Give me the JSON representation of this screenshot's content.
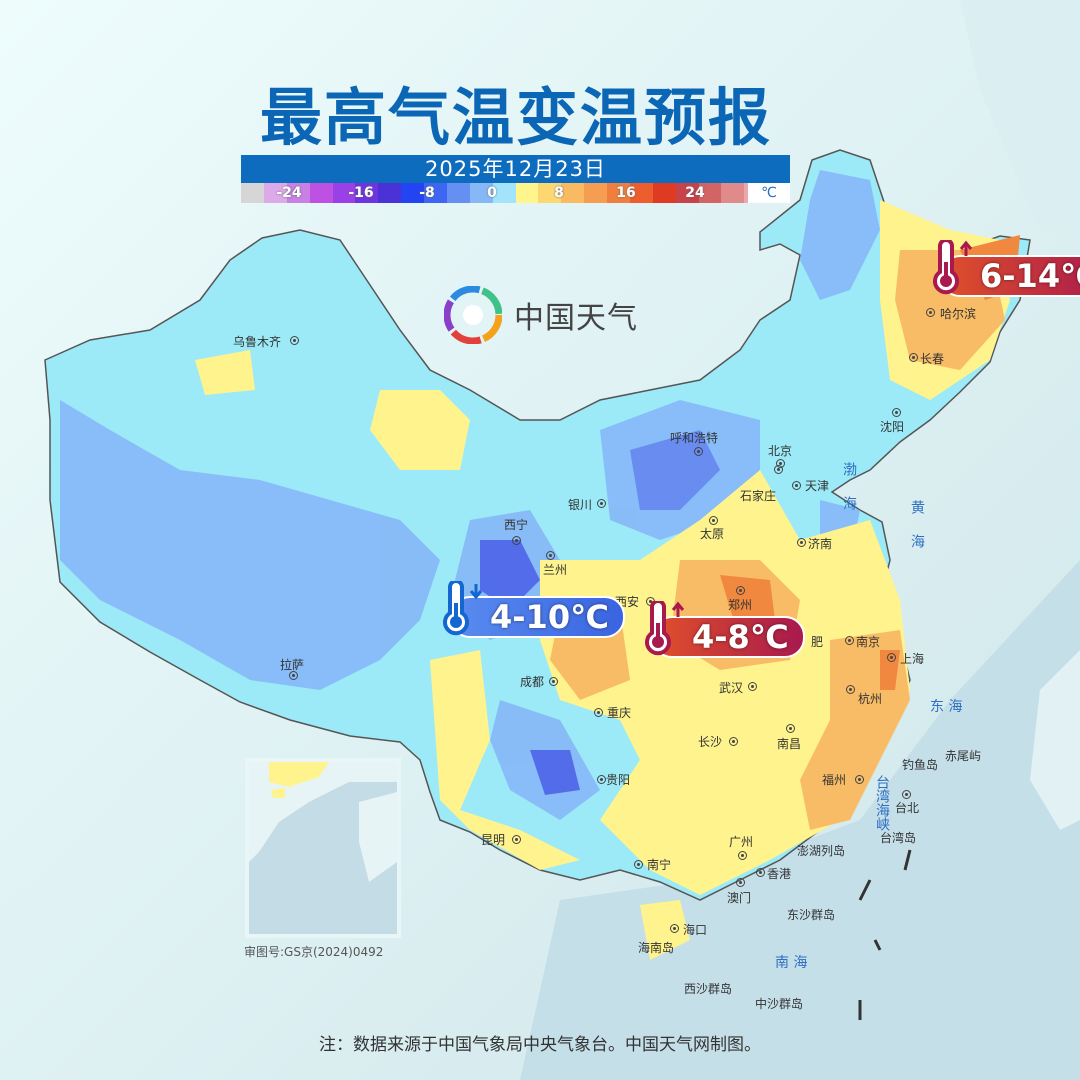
{
  "header": {
    "title": "最高气温变温预报",
    "date": "2025年12月23日"
  },
  "legend": {
    "labels": [
      "-24",
      "-16",
      "-8",
      "0",
      "8",
      "16",
      "24"
    ],
    "unit": "℃",
    "colors": [
      "#d6d6d6",
      "#dcaae8",
      "#c880e4",
      "#bd52e2",
      "#9a40e6",
      "#6f34de",
      "#4a32d6",
      "#2244f2",
      "#3f66f2",
      "#6590f2",
      "#86b8f8",
      "#a2e4fb",
      "#fff58c",
      "#fdd872",
      "#f9ba62",
      "#f59e52",
      "#f07e3e",
      "#ec5e2e",
      "#df3a22",
      "#c8424a",
      "#d26464",
      "#e08a8c",
      "#eaa8ae",
      "#f4c2c6"
    ]
  },
  "logo": {
    "text": "中国天气"
  },
  "callouts": [
    {
      "range": "4-10℃",
      "direction": "down",
      "color": "#3a64e0"
    },
    {
      "range": "4-8℃",
      "direction": "up",
      "color": "#a8194e"
    },
    {
      "range": "6-14℃",
      "direction": "up",
      "color": "#a8194e"
    }
  ],
  "cities": [
    "乌鲁木齐",
    "拉萨",
    "西宁",
    "兰州",
    "银川",
    "呼和浩特",
    "北京",
    "天津",
    "石家庄",
    "太原",
    "济南",
    "郑州",
    "西安",
    "成都",
    "重庆",
    "武汉",
    "肥",
    "南京",
    "上海",
    "杭州",
    "长沙",
    "南昌",
    "福州",
    "贵阳",
    "昆明",
    "南宁",
    "广州",
    "香港",
    "澳门",
    "海口",
    "台北",
    "哈尔滨",
    "长春",
    "沈阳"
  ],
  "islands": [
    "钓鱼岛",
    "赤尾屿",
    "台湾岛",
    "澎湖列岛",
    "东沙群岛",
    "西沙群岛",
    "中沙群岛",
    "海南岛"
  ],
  "seas": [
    "渤海",
    "黄海",
    "东 海",
    "台湾海峡",
    "南 海"
  ],
  "approval_number": "审图号:GS京(2024)0492",
  "footer_note": "注：数据来源于中国气象局中央气象台。中国天气网制图。"
}
